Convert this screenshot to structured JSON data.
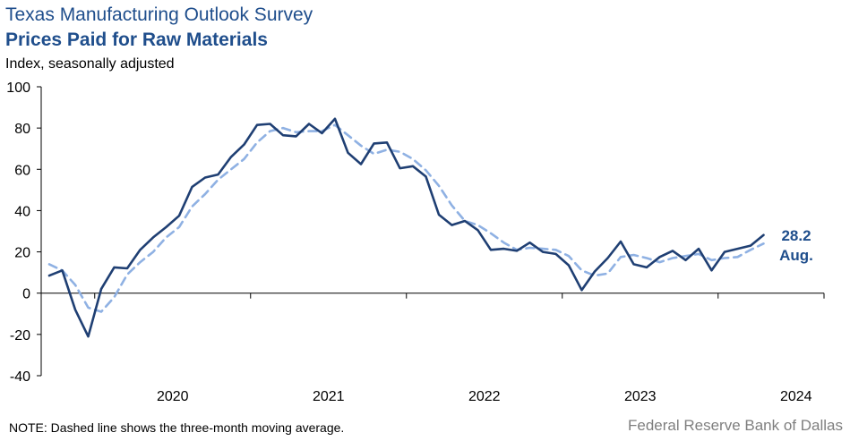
{
  "header": {
    "title": "Texas Manufacturing Outlook Survey",
    "subtitle": "Prices Paid for Raw Materials",
    "ylabel": "Index, seasonally adjusted"
  },
  "footer": {
    "note": "NOTE: Dashed line shows the three-month  moving average.",
    "source": "Federal Reserve Bank of Dallas"
  },
  "colors": {
    "index": "#1f3f73",
    "moving_avg": "#8fb1e3",
    "title": "#1f4e8c"
  },
  "chart_data": {
    "type": "line",
    "x_start": "2019-09",
    "x_end": "2024-08",
    "ylim": [
      -40,
      100
    ],
    "yticks": [
      "100",
      "80",
      "60",
      "40",
      "20",
      "0",
      "-20",
      "-40"
    ],
    "xtick_labels": [
      "2020",
      "2021",
      "2022",
      "2023",
      "2024"
    ],
    "end_label": {
      "value": "28.2",
      "month": "Aug."
    },
    "series": [
      {
        "style": "solid",
        "values": [
          8.5,
          11,
          -8,
          -21,
          2,
          12.5,
          12,
          21,
          27,
          32,
          37.5,
          51.5,
          56,
          57.5,
          66,
          72,
          81.5,
          82,
          76.5,
          76,
          82,
          77.5,
          84.5,
          68,
          62.5,
          72.5,
          73,
          60.5,
          61.5,
          56.5,
          38,
          33,
          35,
          30.5,
          21,
          21.5,
          20.5,
          24.5,
          20,
          19,
          13.5,
          1.5,
          10.5,
          17,
          25,
          14,
          12.5,
          17.5,
          20.5,
          16,
          21.5,
          11,
          20,
          21.5,
          23,
          28.2
        ]
      },
      {
        "style": "dashed",
        "values": [
          14,
          11,
          4,
          -7,
          -9,
          -2,
          9,
          15,
          20,
          27,
          32,
          42,
          48,
          55,
          60,
          65,
          73,
          78.5,
          80,
          78,
          78.5,
          78.5,
          81.5,
          76.5,
          71.5,
          67.5,
          69.5,
          68.5,
          65,
          59.5,
          52,
          42.5,
          35,
          33,
          29,
          24.5,
          21,
          22,
          21.5,
          21,
          18,
          11,
          8.5,
          9.5,
          17.5,
          18.5,
          17,
          15,
          17,
          18,
          19,
          16,
          17,
          17.5,
          21,
          24
        ]
      }
    ]
  }
}
